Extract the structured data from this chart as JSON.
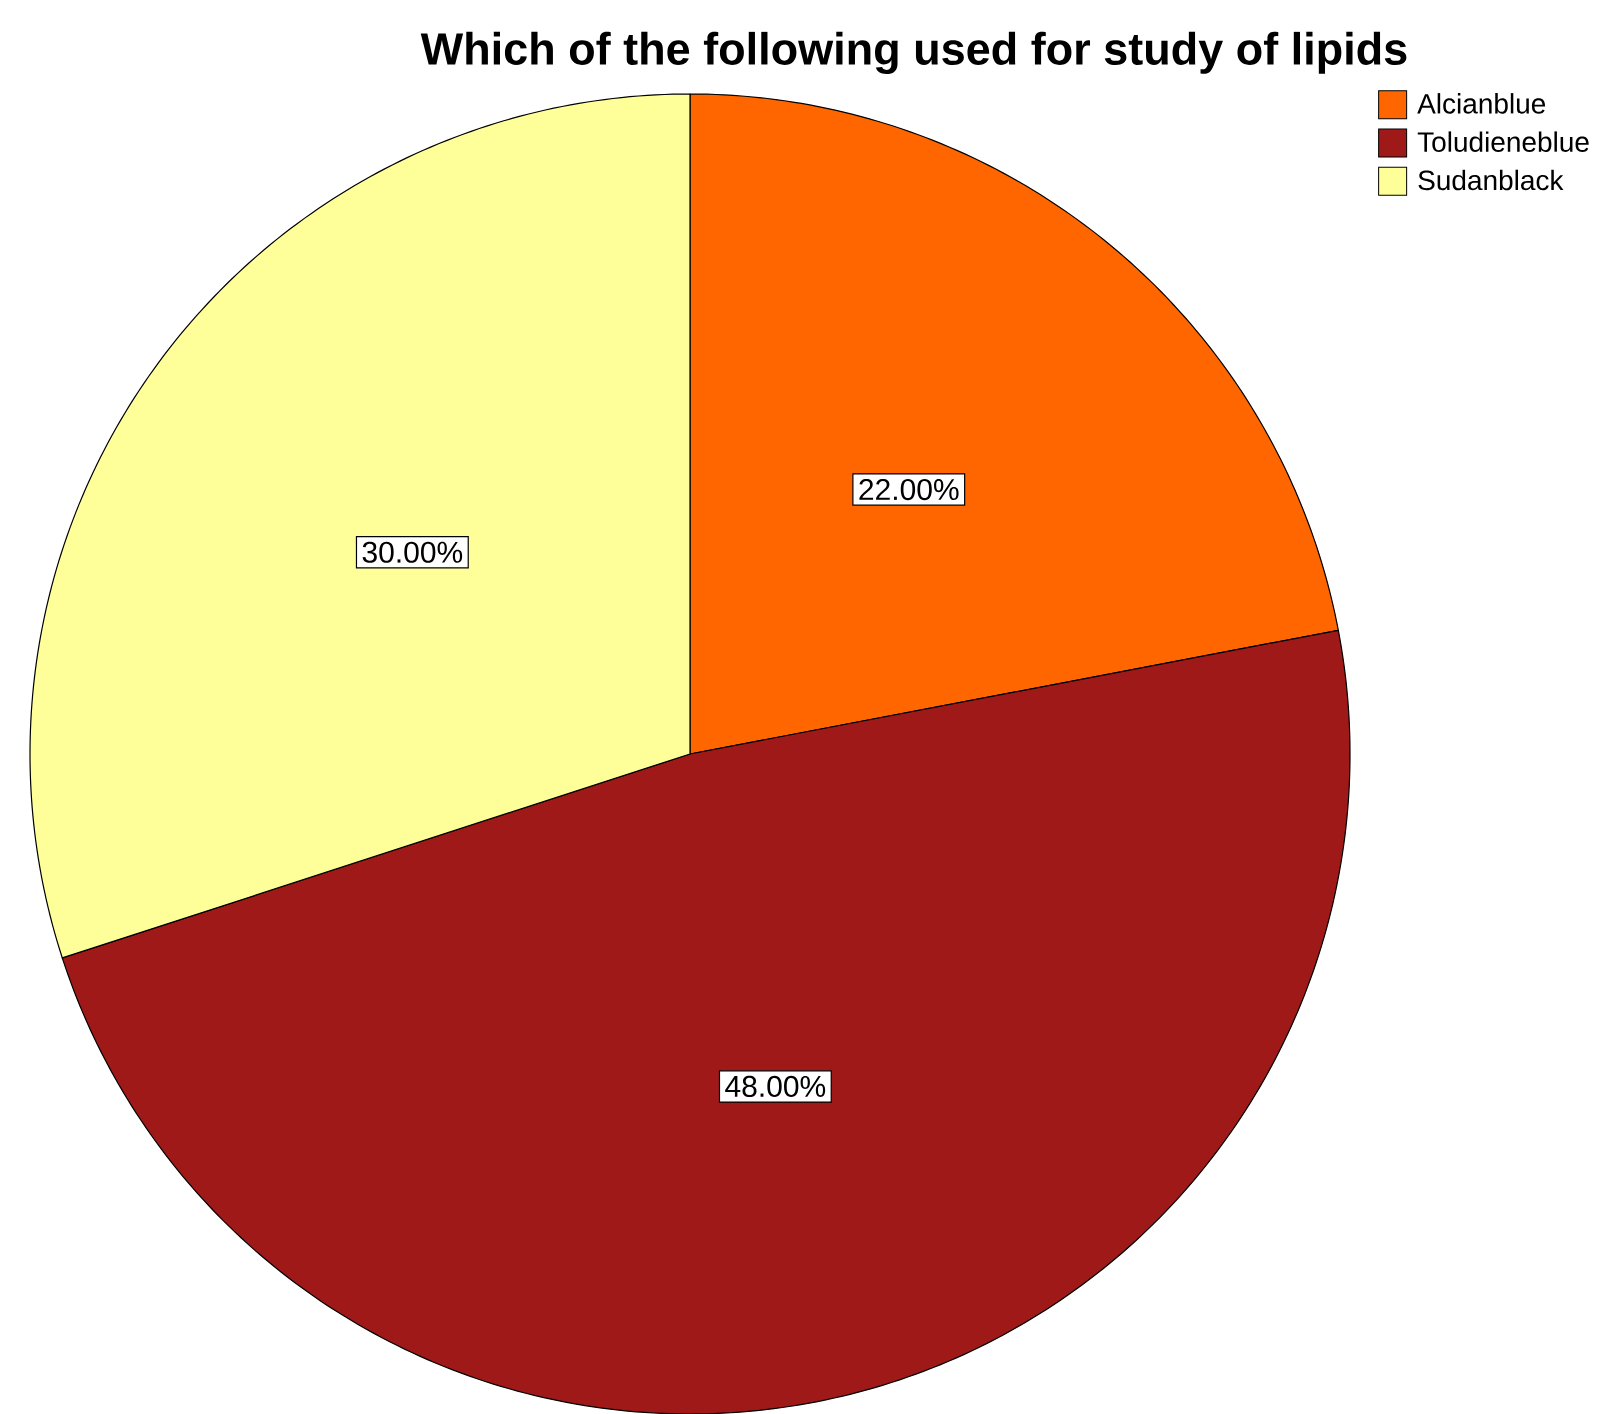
{
  "chart_data": {
    "type": "pie",
    "title": "Which of the following used for study of lipids",
    "categories": [
      "Alcianblue",
      "Toludieneblue",
      "Sudanblack"
    ],
    "values": [
      22,
      48,
      30
    ],
    "colors": [
      "#ff6600",
      "#a01919",
      "#ffff99"
    ],
    "value_labels": [
      "22.00%",
      "48.00%",
      "30.00%"
    ],
    "legend": "top right"
  }
}
